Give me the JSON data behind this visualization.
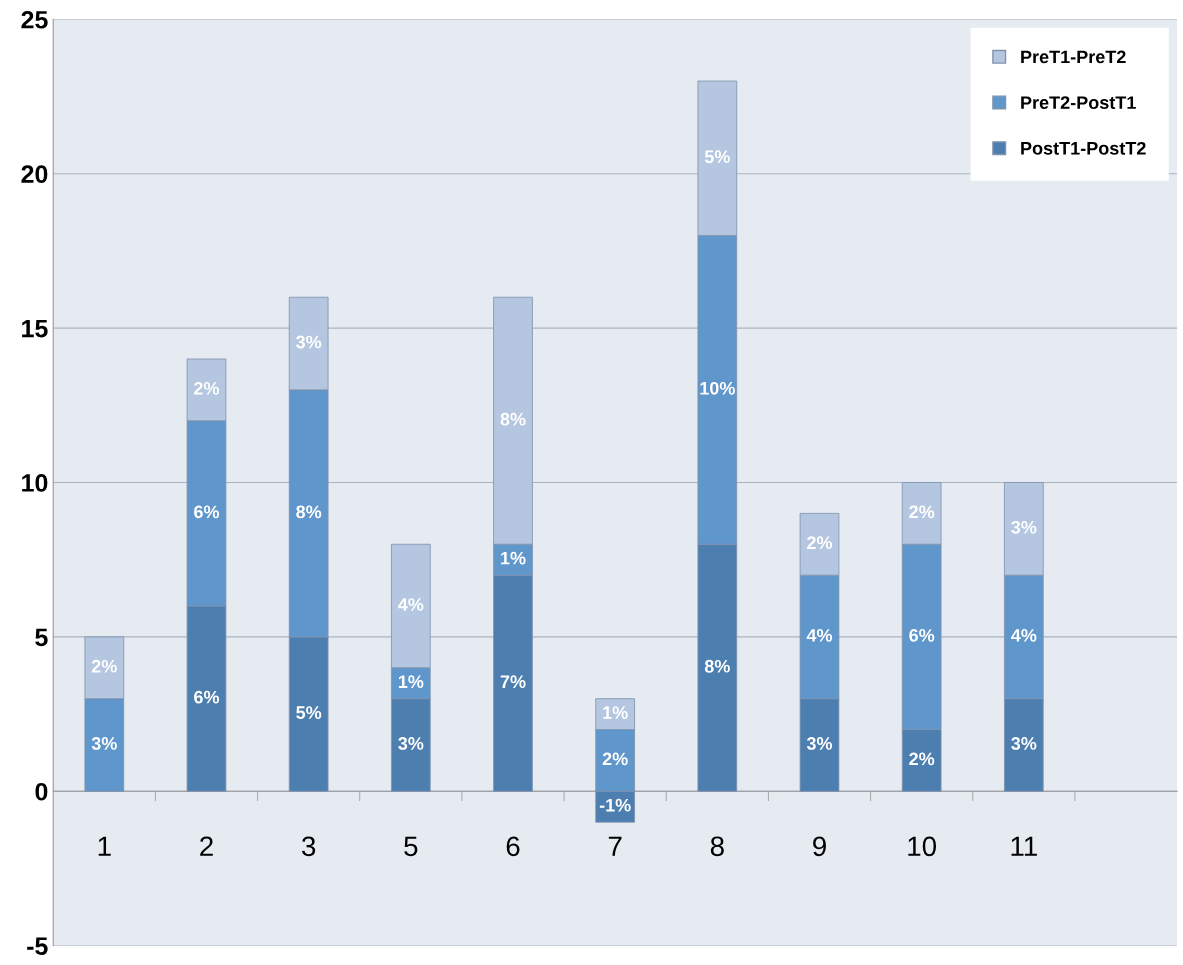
{
  "chart_data": {
    "type": "bar",
    "stacked": true,
    "categories": [
      "1",
      "2",
      "3",
      "5",
      "6",
      "7",
      "8",
      "9",
      "10",
      "11",
      null
    ],
    "series": [
      {
        "name": "PostT1-PostT2",
        "color": "#4d7eb0",
        "values": [
          null,
          6,
          5,
          3,
          7,
          -1,
          8,
          3,
          2,
          3,
          null
        ],
        "value_labels": [
          null,
          "6%",
          "5%",
          "3%",
          "7%",
          "-1%",
          "8%",
          "3%",
          "2%",
          "3%",
          null
        ]
      },
      {
        "name": "PreT2-PostT1",
        "color": "#5f96cb",
        "values": [
          3,
          6,
          8,
          1,
          1,
          2,
          10,
          4,
          6,
          4,
          null
        ],
        "value_labels": [
          "3%",
          "6%",
          "8%",
          "1%",
          "1%",
          "2%",
          "10%",
          "4%",
          "6%",
          "4%",
          null
        ]
      },
      {
        "name": "PreT1-PreT2",
        "color": "#b4c6e0",
        "values": [
          2,
          2,
          3,
          4,
          8,
          1,
          5,
          2,
          2,
          3,
          null
        ],
        "value_labels": [
          "2%",
          "2%",
          "3%",
          "4%",
          "8%",
          "1%",
          "5%",
          "2%",
          "2%",
          "3%",
          null
        ]
      }
    ],
    "ylim": [
      -5,
      25
    ],
    "yticks": [
      -5,
      0,
      5,
      10,
      15,
      20,
      25
    ],
    "grid": "y",
    "legend": "top right"
  }
}
